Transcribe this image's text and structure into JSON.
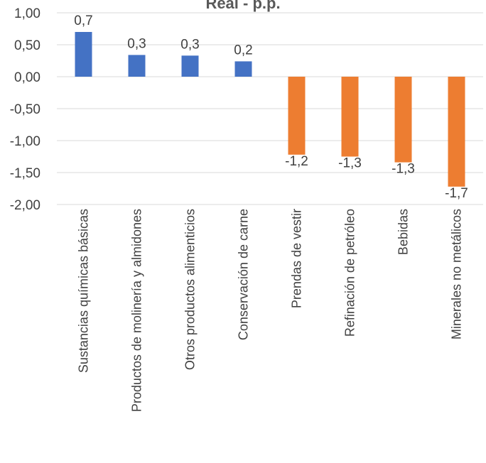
{
  "chart_data": {
    "type": "bar",
    "title": "Real - p.p.",
    "categories": [
      "Sustancias químicas básicas",
      "Productos de molinería y almidones",
      "Otros productos alimenticios",
      "Conservación de carne",
      "Prendas de vestir",
      "Refinación de petróleo",
      "Bebidas",
      "Minerales no metálicos"
    ],
    "values": [
      0.7,
      0.34,
      0.33,
      0.24,
      -1.22,
      -1.25,
      -1.34,
      -1.72
    ],
    "data_labels": [
      "0,7",
      "0,3",
      "0,3",
      "0,2",
      "-1,2",
      "-1,3",
      "-1,3",
      "-1,7"
    ],
    "ylim": [
      -2.0,
      1.0
    ],
    "y_ticks": [
      1.0,
      0.5,
      0.0,
      -0.5,
      -1.0,
      -1.5,
      -2.0
    ],
    "y_tick_labels": [
      "1,00",
      "0,50",
      "0,00",
      "-0,50",
      "-1,00",
      "-1,50",
      "-2,00"
    ],
    "colors": {
      "positive": "#4472C4",
      "negative": "#ED7D31"
    },
    "grid": true,
    "legend": "none",
    "xlabel": "",
    "ylabel": ""
  }
}
